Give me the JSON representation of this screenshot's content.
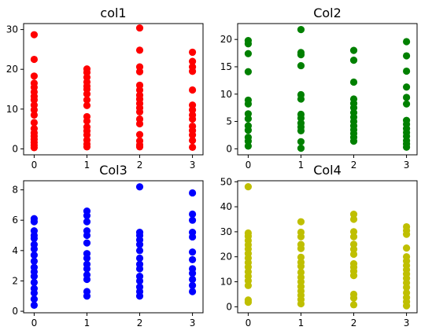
{
  "chart_data": [
    {
      "type": "scatter",
      "title": "col1",
      "color": "#ff0000",
      "xlim": [
        -0.2,
        3.2
      ],
      "ylim": [
        -1.5,
        31.5
      ],
      "x_ticks": [
        "0",
        "1",
        "2",
        "3"
      ],
      "y_ticks": [
        "0",
        "10",
        "20",
        "30"
      ],
      "series": [
        {
          "x": 0,
          "values": [
            28.7,
            22.5,
            18.3,
            16.5,
            15.5,
            14.3,
            13.2,
            12.3,
            11.0,
            9.8,
            8.5,
            6.6,
            5.1,
            4.0,
            3.2,
            2.4,
            1.6,
            0.9,
            0.3
          ]
        },
        {
          "x": 1,
          "values": [
            20.1,
            19.2,
            18.0,
            16.8,
            15.8,
            15.0,
            13.8,
            12.3,
            10.9,
            8.1,
            7.0,
            5.5,
            4.5,
            3.5,
            2.2,
            1.2,
            0.5
          ]
        },
        {
          "x": 2,
          "values": [
            30.4,
            24.8,
            20.6,
            19.4,
            16.0,
            14.8,
            13.5,
            12.5,
            11.4,
            10.3,
            9.3,
            7.5,
            6.3,
            3.6,
            2.0,
            1.0,
            0.5
          ]
        },
        {
          "x": 3,
          "values": [
            24.3,
            22.0,
            20.6,
            19.5,
            14.8,
            11.0,
            9.8,
            8.5,
            7.5,
            5.7,
            4.6,
            3.5,
            2.1,
            0.4
          ]
        }
      ]
    },
    {
      "type": "scatter",
      "title": "Col2",
      "color": "#008000",
      "xlim": [
        -0.2,
        3.2
      ],
      "ylim": [
        -1.1,
        22.9
      ],
      "x_ticks": [
        "0",
        "1",
        "2",
        "3"
      ],
      "y_ticks": [
        "0",
        "5",
        "10",
        "15",
        "20"
      ],
      "series": [
        {
          "x": 0,
          "values": [
            19.8,
            19.2,
            17.4,
            14.1,
            8.9,
            8.2,
            6.4,
            5.5,
            4.2,
            3.4,
            2.1,
            1.4,
            0.5
          ]
        },
        {
          "x": 1,
          "values": [
            21.8,
            17.6,
            17.2,
            15.2,
            9.9,
            9.1,
            6.3,
            5.6,
            4.7,
            4.0,
            3.3,
            1.3,
            0.1
          ]
        },
        {
          "x": 2,
          "values": [
            18.0,
            16.2,
            12.2,
            9.1,
            8.3,
            7.5,
            6.6,
            5.8,
            5.0,
            4.2,
            3.5,
            2.8,
            2.1,
            1.4
          ]
        },
        {
          "x": 3,
          "values": [
            19.6,
            17.0,
            14.2,
            11.3,
            9.4,
            8.2,
            5.2,
            4.5,
            3.7,
            3.0,
            2.3,
            1.5,
            0.9,
            0.3
          ]
        }
      ]
    },
    {
      "type": "scatter",
      "title": "Col3",
      "color": "#0000ff",
      "xlim": [
        -0.2,
        3.2
      ],
      "ylim": [
        -0.1,
        8.6
      ],
      "x_ticks": [
        "0",
        "1",
        "2",
        "3"
      ],
      "y_ticks": [
        "0",
        "2",
        "4",
        "6",
        "8"
      ],
      "series": [
        {
          "x": 0,
          "values": [
            6.1,
            5.9,
            5.3,
            5.0,
            4.8,
            4.4,
            4.1,
            3.7,
            3.3,
            2.9,
            2.6,
            2.3,
            1.9,
            1.5,
            1.2,
            0.8,
            0.4
          ]
        },
        {
          "x": 1,
          "values": [
            6.6,
            6.3,
            5.9,
            5.3,
            5.0,
            4.5,
            3.8,
            3.5,
            3.1,
            2.8,
            2.4,
            2.1,
            1.3,
            1.0
          ]
        },
        {
          "x": 2,
          "values": [
            8.2,
            5.2,
            5.0,
            4.7,
            4.4,
            4.0,
            3.5,
            3.1,
            2.8,
            2.3,
            2.0,
            1.6,
            1.3,
            1.0
          ]
        },
        {
          "x": 3,
          "values": [
            7.8,
            6.4,
            6.0,
            5.2,
            4.9,
            3.9,
            3.4,
            2.8,
            2.5,
            2.1,
            1.7,
            1.3
          ]
        }
      ]
    },
    {
      "type": "scatter",
      "title": "Col4",
      "color": "#bfbf00",
      "xlim": [
        -0.2,
        3.2
      ],
      "ylim": [
        -2.4,
        50.4
      ],
      "x_ticks": [
        "0",
        "1",
        "2",
        "3"
      ],
      "y_ticks": [
        "0",
        "10",
        "20",
        "30",
        "40",
        "50"
      ],
      "series": [
        {
          "x": 0,
          "values": [
            48.0,
            29.5,
            28.2,
            26.5,
            24.8,
            23.1,
            21.3,
            19.5,
            17.7,
            15.9,
            14.0,
            12.2,
            10.4,
            8.5,
            2.7,
            1.8
          ]
        },
        {
          "x": 1,
          "values": [
            34.0,
            29.8,
            28.0,
            24.9,
            23.3,
            19.8,
            17.8,
            16.2,
            13.8,
            11.8,
            10.0,
            8.1,
            6.3,
            4.6,
            2.9,
            1.2
          ]
        },
        {
          "x": 2,
          "values": [
            37.0,
            35.0,
            30.0,
            28.0,
            25.0,
            23.0,
            21.0,
            17.2,
            15.8,
            14.2,
            12.5,
            5.0,
            3.5,
            0.8
          ]
        },
        {
          "x": 3,
          "values": [
            32.0,
            30.5,
            29.0,
            23.5,
            20.0,
            18.3,
            16.5,
            14.8,
            13.1,
            11.4,
            9.6,
            7.8,
            5.6,
            3.7,
            2.0,
            0.4
          ]
        }
      ]
    }
  ]
}
